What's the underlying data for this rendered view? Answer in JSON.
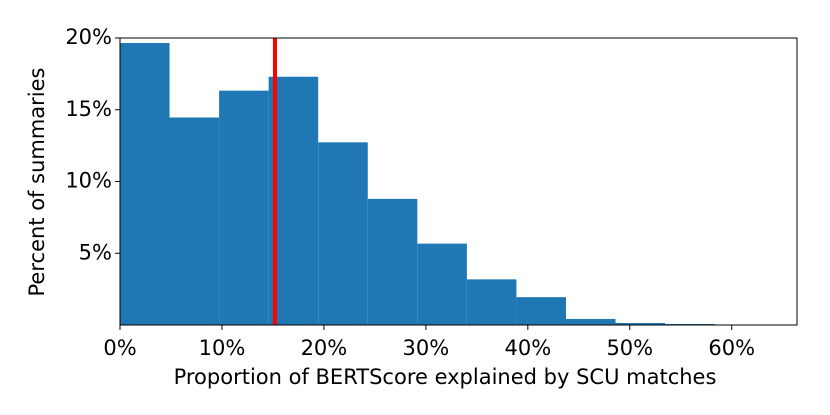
{
  "chart_data": {
    "type": "histogram",
    "x_label": "Proportion of BERTScore explained by SCU matches",
    "y_label": "Percent of summaries",
    "bins": [
      0,
      4.86,
      9.72,
      14.58,
      19.44,
      24.3,
      29.16,
      34.02,
      38.88,
      43.74,
      48.6,
      53.46,
      58.32
    ],
    "values": [
      19.65,
      14.46,
      16.33,
      17.3,
      12.73,
      8.79,
      5.67,
      3.18,
      1.94,
      0.42,
      0.14,
      0.07
    ],
    "color": "#1f77b4",
    "vline": {
      "value": 15.2,
      "color": "#ff0000"
    },
    "xlim": [
      0,
      66.4
    ],
    "ylim": [
      0,
      20
    ],
    "xticks": [
      {
        "value": 0,
        "label": "0%"
      },
      {
        "value": 10,
        "label": "10%"
      },
      {
        "value": 20,
        "label": "20%"
      },
      {
        "value": 30,
        "label": "30%"
      },
      {
        "value": 40,
        "label": "40%"
      },
      {
        "value": 50,
        "label": "50%"
      },
      {
        "value": 60,
        "label": "60%"
      }
    ],
    "yticks": [
      {
        "value": 5,
        "label": "5%"
      },
      {
        "value": 10,
        "label": "10%"
      },
      {
        "value": 15,
        "label": "15%"
      },
      {
        "value": 20,
        "label": "20%"
      }
    ]
  }
}
